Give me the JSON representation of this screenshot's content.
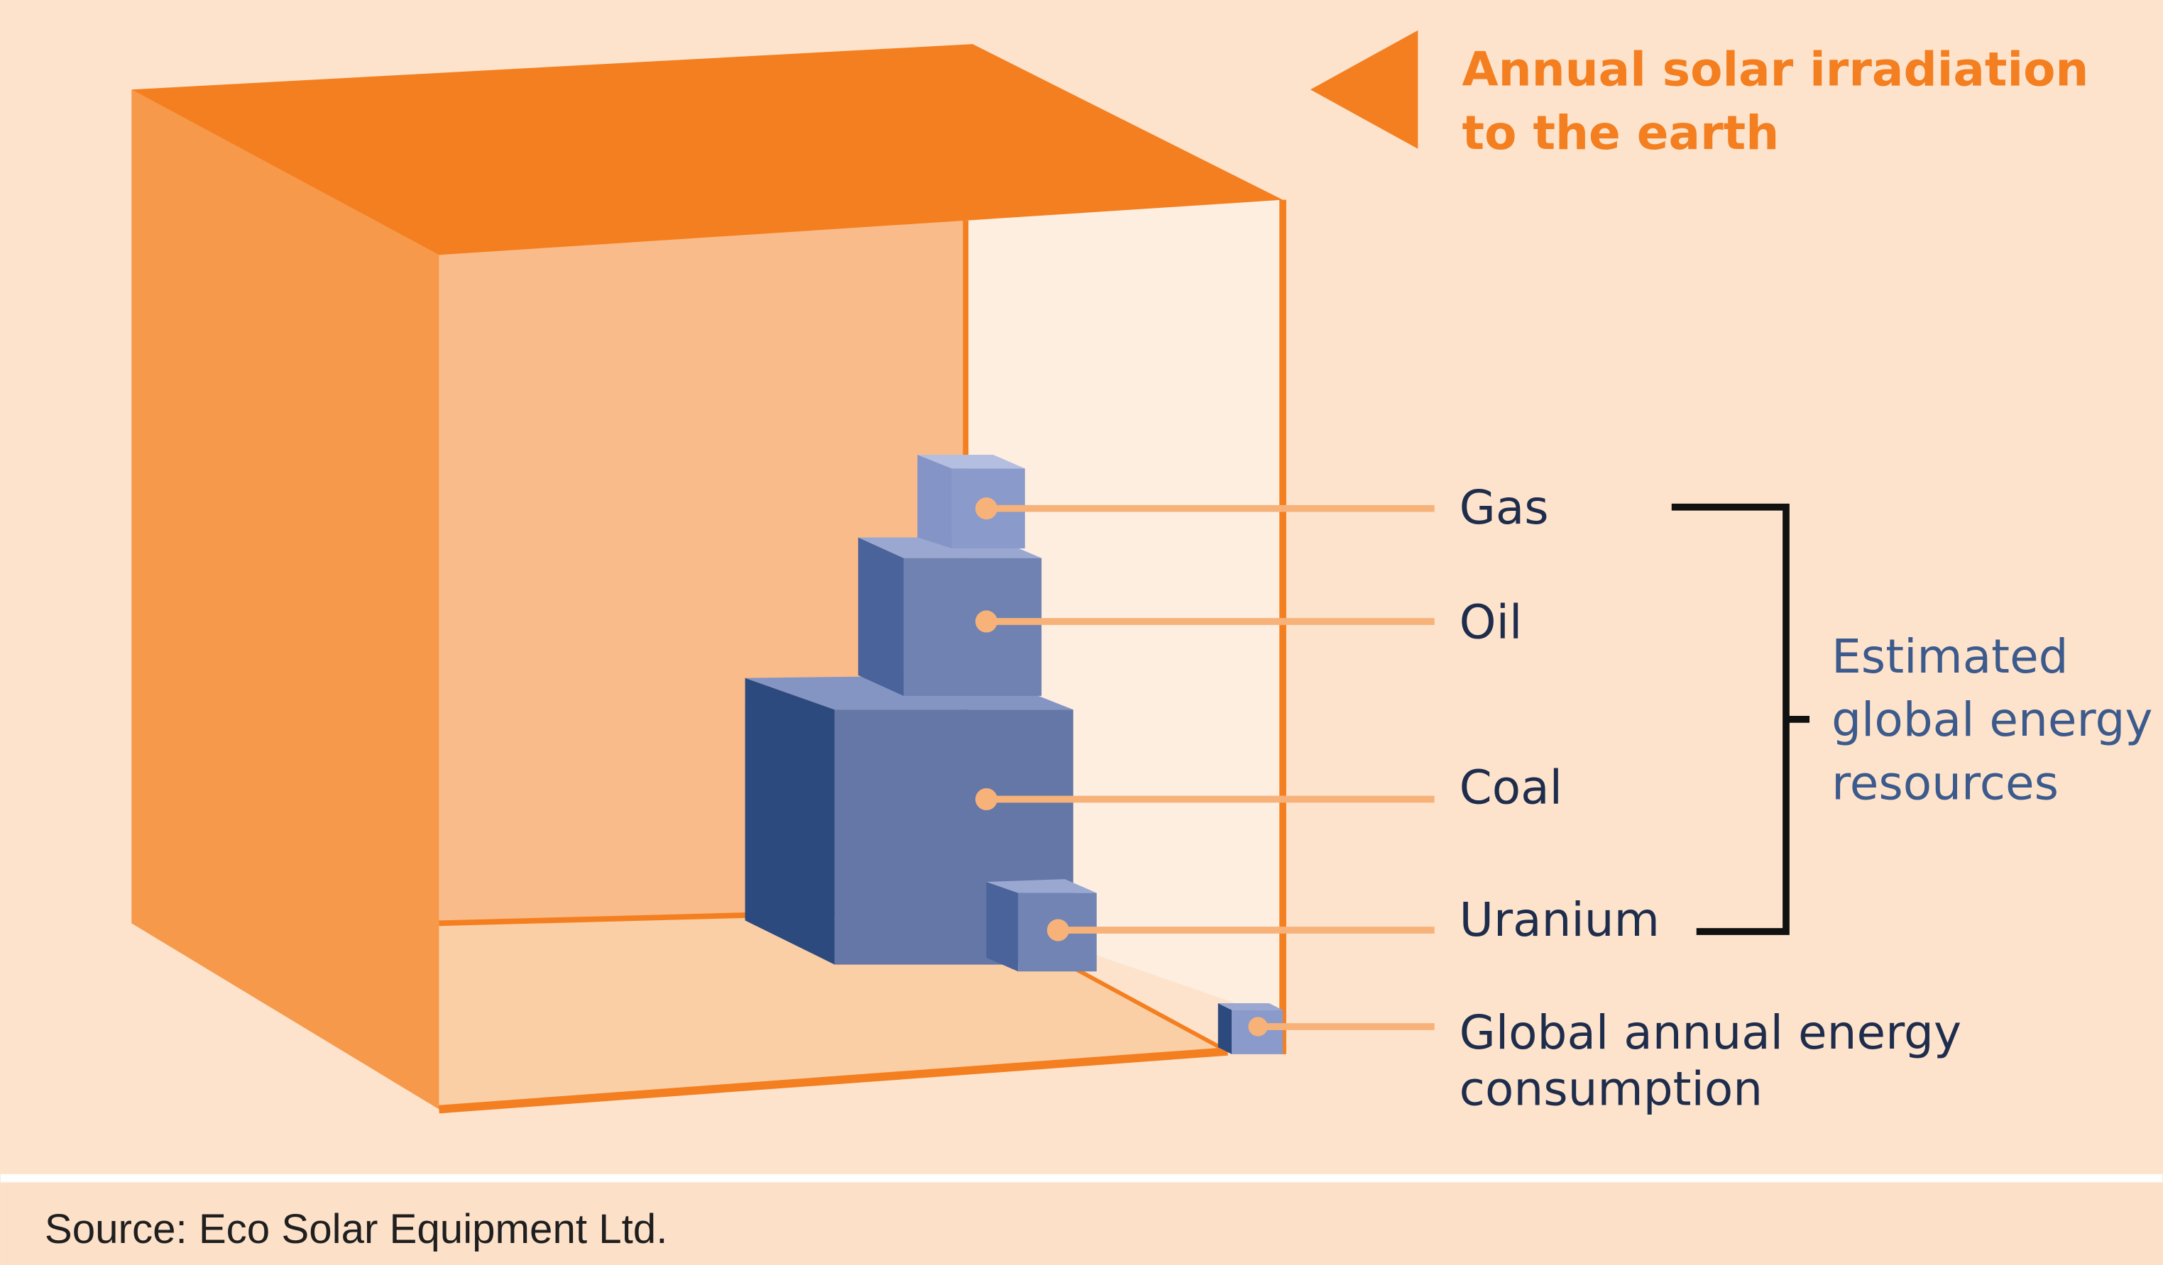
{
  "header": {
    "title_lines": [
      "Annual solar irradiation",
      "to the earth"
    ]
  },
  "labels": {
    "gas": "Gas",
    "oil": "Oil",
    "coal": "Coal",
    "uranium": "Uranium",
    "consumption_lines": [
      "Global annual energy",
      "consumption"
    ]
  },
  "bracket": {
    "label_lines": [
      "Estimated",
      "global energy",
      "resources"
    ]
  },
  "footer": {
    "source": "Source: Eco Solar Equipment Ltd."
  }
}
